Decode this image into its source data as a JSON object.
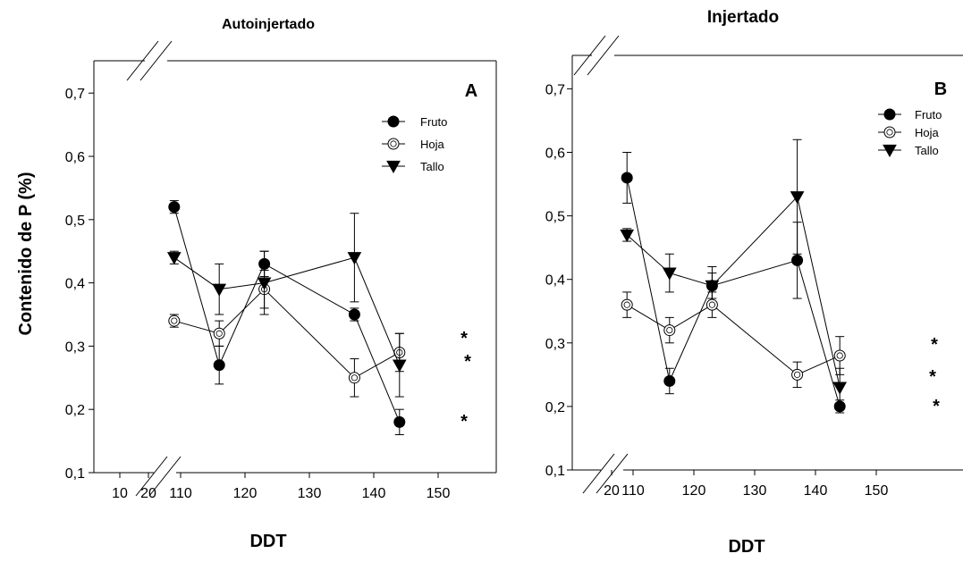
{
  "chart_data": [
    {
      "type": "line",
      "panel": "A",
      "title": "Autoinjertado",
      "xlabel": "DDT",
      "ylabel": "Contenido de P (%)",
      "ylim": [
        0.1,
        0.75
      ],
      "x_ticks": [
        "10",
        "20",
        "110",
        "120",
        "130",
        "140",
        "150"
      ],
      "y_ticks": [
        "0,1",
        "0,2",
        "0,3",
        "0,4",
        "0,5",
        "0,6",
        "0,7"
      ],
      "axis_breaks": "x and y",
      "legend_position": "top-right",
      "x": [
        109,
        116,
        123,
        137,
        144
      ],
      "series": [
        {
          "name": "Fruto",
          "marker": "filled-circle",
          "values": [
            0.52,
            0.27,
            0.43,
            0.35,
            0.18
          ],
          "errors": [
            0.01,
            0.03,
            0.02,
            0.01,
            0.02
          ]
        },
        {
          "name": "Hoja",
          "marker": "open-circle",
          "values": [
            0.34,
            0.32,
            0.39,
            0.25,
            0.29
          ],
          "errors": [
            0.01,
            0.02,
            0.03,
            0.03,
            0.03
          ]
        },
        {
          "name": "Tallo",
          "marker": "filled-triangle-down",
          "values": [
            0.44,
            0.39,
            0.4,
            0.44,
            0.27
          ],
          "errors": [
            0.01,
            0.04,
            0.05,
            0.07,
            0.05
          ]
        }
      ],
      "annotations": [
        "*",
        "*",
        "*"
      ]
    },
    {
      "type": "line",
      "panel": "B",
      "title": "Injertado",
      "xlabel": "DDT",
      "ylim": [
        0.1,
        0.75
      ],
      "x_ticks": [
        "20",
        "110",
        "120",
        "130",
        "140",
        "150"
      ],
      "y_ticks": [
        "0,1",
        "0,2",
        "0,3",
        "0,4",
        "0,5",
        "0,6",
        "0,7"
      ],
      "axis_breaks": "x and y",
      "legend_position": "top-right",
      "x": [
        109,
        116,
        123,
        137,
        144
      ],
      "series": [
        {
          "name": "Fruto",
          "marker": "filled-circle",
          "values": [
            0.56,
            0.24,
            0.39,
            0.43,
            0.2
          ],
          "errors": [
            0.04,
            0.02,
            0.03,
            0.06,
            0.01
          ]
        },
        {
          "name": "Hoja",
          "marker": "open-circle",
          "values": [
            0.36,
            0.32,
            0.36,
            0.25,
            0.28
          ],
          "errors": [
            0.02,
            0.02,
            0.02,
            0.02,
            0.03
          ]
        },
        {
          "name": "Tallo",
          "marker": "filled-triangle-down",
          "values": [
            0.47,
            0.41,
            0.39,
            0.53,
            0.23
          ],
          "errors": [
            0.01,
            0.03,
            0.02,
            0.09,
            0.03
          ]
        }
      ],
      "annotations": [
        "*",
        "*",
        "*"
      ]
    }
  ]
}
